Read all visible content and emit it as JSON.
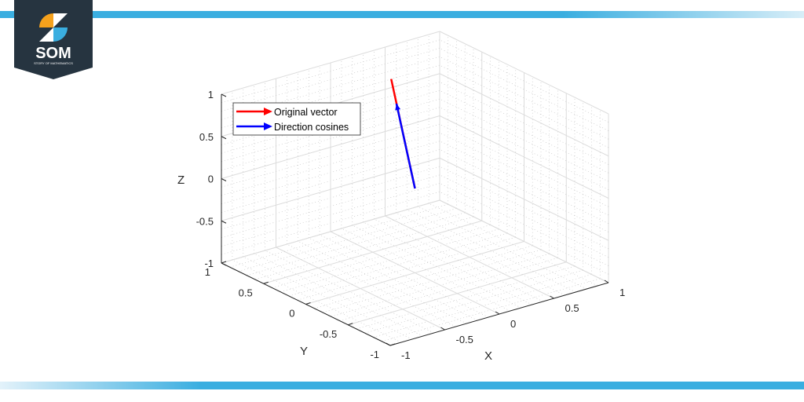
{
  "brand": {
    "logo_text": "SOM",
    "logo_subtext": "STORY OF MATHEMATICS",
    "accent": "#3aaee0",
    "dark": "#263440"
  },
  "chart_data": {
    "type": "quiver3d",
    "title": "",
    "xlabel": "X",
    "ylabel": "Y",
    "zlabel": "Z",
    "xlim": [
      -1,
      1
    ],
    "ylim": [
      -1,
      1
    ],
    "zlim": [
      -1,
      1
    ],
    "xticks": [
      "-1",
      "-0.5",
      "0",
      "0.5",
      "1"
    ],
    "yticks": [
      "-1",
      "-0.5",
      "0",
      "0.5",
      "1"
    ],
    "zticks": [
      "-1",
      "-0.5",
      "0",
      "0.5",
      "1"
    ],
    "grid": true,
    "minor_grid": true,
    "legend_placement": "top-left",
    "series": [
      {
        "name": "Original vector",
        "color": "#ff0000",
        "origin": [
          0,
          0,
          0
        ],
        "vector": [
          0.6,
          1.08,
          0.65
        ]
      },
      {
        "name": "Direction cosines",
        "color": "#0000ff",
        "origin": [
          0,
          0,
          0
        ],
        "vector": [
          0.43,
          0.775,
          0.466
        ]
      }
    ]
  }
}
